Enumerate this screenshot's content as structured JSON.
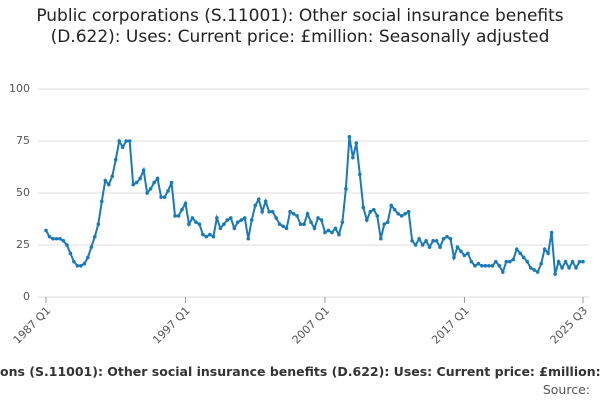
{
  "chart_data": {
    "type": "line",
    "title": "Public corporations (S.11001): Other social insurance benefits (D.622): Uses: Current price: £million: Seasonally adjusted",
    "footer": "ons (S.11001): Other social insurance benefits (D.622): Uses: Current price: £million: S",
    "source": "Source:",
    "categories": [
      "1987 Q1",
      null,
      null,
      null,
      null,
      null,
      null,
      null,
      null,
      null,
      null,
      null,
      null,
      null,
      null,
      null,
      null,
      null,
      null,
      null,
      null,
      null,
      null,
      null,
      null,
      null,
      null,
      null,
      null,
      null,
      null,
      null,
      null,
      null,
      null,
      null,
      null,
      null,
      null,
      null,
      "1997 Q1",
      null,
      null,
      null,
      null,
      null,
      null,
      null,
      null,
      null,
      null,
      null,
      null,
      null,
      null,
      null,
      null,
      null,
      null,
      null,
      null,
      null,
      null,
      null,
      null,
      null,
      null,
      null,
      null,
      null,
      null,
      null,
      null,
      null,
      null,
      null,
      null,
      null,
      null,
      null,
      "2007 Q1",
      null,
      null,
      null,
      null,
      null,
      null,
      null,
      null,
      null,
      null,
      null,
      null,
      null,
      null,
      null,
      null,
      null,
      null,
      null,
      null,
      null,
      null,
      null,
      null,
      null,
      null,
      null,
      null,
      null,
      null,
      null,
      null,
      null,
      null,
      null,
      null,
      null,
      null,
      null,
      "2017 Q1",
      null,
      null,
      null,
      null,
      null,
      null,
      null,
      null,
      null,
      null,
      null,
      null,
      null,
      null,
      null,
      null,
      null,
      null,
      null,
      null,
      null,
      null,
      null,
      null,
      null,
      null,
      null,
      null,
      null,
      null,
      null,
      null,
      null,
      "2025 Q3"
    ],
    "series": [
      {
        "name": "Public corporations other social insurance benefits",
        "color": "#1a7ab9",
        "values": [
          32,
          29,
          28,
          28,
          28,
          27,
          25,
          21,
          17,
          15,
          15,
          16,
          19,
          24,
          29,
          35,
          46,
          56,
          54,
          58,
          66,
          75,
          72,
          75,
          75,
          54,
          55,
          57,
          61,
          50,
          52,
          55,
          57,
          48,
          48,
          51,
          55,
          39,
          39,
          42,
          45,
          35,
          38,
          36,
          35,
          30,
          29,
          30,
          29,
          38,
          33,
          35,
          37,
          38,
          33,
          36,
          37,
          38,
          28,
          37,
          44,
          47,
          41,
          46,
          41,
          41,
          38,
          35,
          34,
          33,
          41,
          40,
          39,
          35,
          35,
          40,
          36,
          33,
          38,
          37,
          31,
          32,
          31,
          33,
          30,
          36,
          52,
          77,
          67,
          74,
          59,
          43,
          37,
          41,
          42,
          39,
          28,
          35,
          36,
          44,
          42,
          40,
          39,
          40,
          41,
          27,
          25,
          28,
          25,
          27,
          24,
          27,
          27,
          24,
          28,
          29,
          28,
          19,
          24,
          22,
          20,
          21,
          17,
          15,
          16,
          15,
          15,
          15,
          15,
          17,
          15,
          12,
          17,
          17,
          18,
          23,
          21,
          19,
          17,
          14,
          13,
          12,
          16,
          23,
          21,
          31,
          11,
          17,
          14,
          17,
          14,
          17,
          14,
          17,
          17
        ]
      }
    ],
    "ylim": [
      0,
      100
    ],
    "yticks": [
      0,
      25,
      50,
      75,
      100
    ],
    "grid": true
  }
}
